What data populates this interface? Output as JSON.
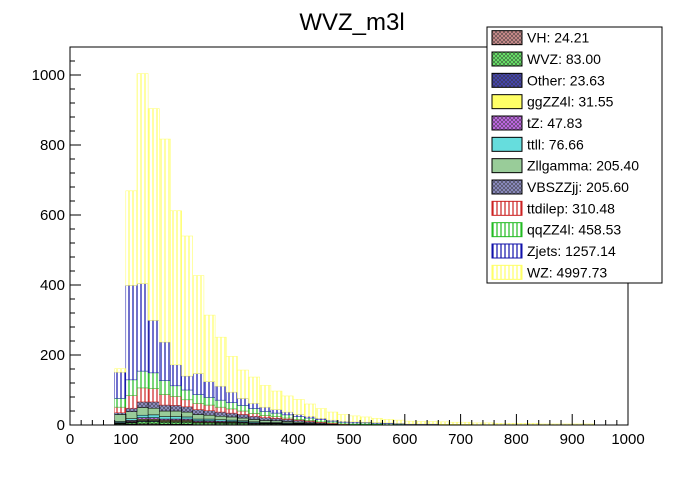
{
  "chart_data": {
    "type": "bar",
    "stacked": true,
    "title": "WVZ_m3l",
    "xlabel": "",
    "ylabel": "",
    "xlim": [
      0,
      1000
    ],
    "ylim": [
      0,
      1080
    ],
    "bin_width": 20,
    "x_ticks": [
      0,
      100,
      200,
      300,
      400,
      500,
      600,
      700,
      800,
      900,
      1000
    ],
    "y_ticks": [
      0,
      200,
      400,
      600,
      800,
      1000
    ],
    "grid": false,
    "legend_position": "top-right",
    "bins": [
      80,
      100,
      120,
      140,
      160,
      180,
      200,
      220,
      240,
      260,
      280,
      300,
      320,
      340,
      360,
      380,
      400,
      420,
      440,
      460,
      480,
      500,
      520,
      540,
      560,
      580,
      600,
      620,
      640,
      660,
      680,
      700,
      720,
      740,
      760,
      780,
      800,
      820,
      840,
      860,
      880,
      900,
      920
    ],
    "series": [
      {
        "name": "VH: 24.21",
        "color": "#c48888",
        "hatch": "cross",
        "values": [
          1,
          2,
          3,
          3,
          2,
          2,
          2,
          1,
          1,
          1,
          1,
          1,
          0,
          0,
          0,
          0,
          0,
          0,
          0,
          0,
          0,
          0,
          0,
          0,
          0,
          0,
          0,
          0,
          0,
          0,
          0,
          0,
          0,
          0,
          0,
          0,
          0,
          0,
          0,
          0,
          0,
          0,
          0
        ]
      },
      {
        "name": "WVZ: 83.00",
        "color": "#66dd66",
        "hatch": "cross",
        "values": [
          2,
          4,
          7,
          7,
          6,
          6,
          6,
          5,
          5,
          4,
          4,
          4,
          3,
          3,
          3,
          2,
          2,
          2,
          2,
          1,
          1,
          1,
          1,
          1,
          1,
          1,
          0,
          0,
          0,
          0,
          0,
          0,
          0,
          0,
          0,
          0,
          0,
          0,
          0,
          0,
          0,
          0,
          0
        ]
      },
      {
        "name": "Other: 23.63",
        "color": "#4444aa",
        "hatch": "cross",
        "values": [
          1,
          2,
          3,
          3,
          2,
          2,
          2,
          1,
          1,
          1,
          1,
          1,
          0,
          0,
          0,
          0,
          0,
          0,
          0,
          0,
          0,
          0,
          0,
          0,
          0,
          0,
          0,
          0,
          0,
          0,
          0,
          0,
          0,
          0,
          0,
          0,
          0,
          0,
          0,
          0,
          0,
          0,
          0
        ]
      },
      {
        "name": "ggZZ4l: 31.55",
        "color": "#ffff66",
        "hatch": "solid",
        "values": [
          1,
          2,
          3,
          3,
          3,
          3,
          3,
          2,
          2,
          2,
          2,
          1,
          1,
          1,
          1,
          1,
          1,
          0,
          0,
          0,
          0,
          0,
          0,
          0,
          0,
          0,
          0,
          0,
          0,
          0,
          0,
          0,
          0,
          0,
          0,
          0,
          0,
          0,
          0,
          0,
          0,
          0,
          0
        ]
      },
      {
        "name": "tZ: 47.83",
        "color": "#bb66dd",
        "hatch": "cross",
        "values": [
          2,
          3,
          5,
          5,
          4,
          4,
          4,
          3,
          3,
          3,
          2,
          2,
          2,
          1,
          1,
          1,
          1,
          1,
          0,
          0,
          0,
          0,
          0,
          0,
          0,
          0,
          0,
          0,
          0,
          0,
          0,
          0,
          0,
          0,
          0,
          0,
          0,
          0,
          0,
          0,
          0,
          0,
          0
        ]
      },
      {
        "name": "ttll: 76.66",
        "color": "#66dddd",
        "hatch": "solid",
        "values": [
          3,
          5,
          7,
          8,
          7,
          7,
          6,
          5,
          5,
          4,
          4,
          3,
          3,
          2,
          2,
          2,
          1,
          1,
          1,
          1,
          0,
          0,
          0,
          0,
          0,
          0,
          0,
          0,
          0,
          0,
          0,
          0,
          0,
          0,
          0,
          0,
          0,
          0,
          0,
          0,
          0,
          0,
          0
        ]
      },
      {
        "name": "Zllgamma: 205.40",
        "color": "#99cc99",
        "hatch": "solid",
        "values": [
          20,
          20,
          22,
          19,
          16,
          16,
          14,
          13,
          11,
          10,
          9,
          8,
          7,
          6,
          5,
          4,
          3,
          2,
          1,
          0,
          0,
          0,
          0,
          0,
          0,
          0,
          0,
          0,
          0,
          0,
          0,
          0,
          0,
          0,
          0,
          0,
          0,
          0,
          0,
          0,
          0,
          0,
          0
        ]
      },
      {
        "name": "VBSZZjj: 205.60",
        "color": "#8888bb",
        "hatch": "cross",
        "values": [
          5,
          10,
          16,
          18,
          17,
          16,
          15,
          14,
          13,
          12,
          11,
          10,
          9,
          8,
          7,
          6,
          5,
          4,
          3,
          2,
          1,
          1,
          1,
          1,
          0,
          0,
          0,
          0,
          0,
          0,
          0,
          0,
          0,
          0,
          0,
          0,
          0,
          0,
          0,
          0,
          0,
          0,
          0
        ]
      },
      {
        "name": "ttdilep: 310.48",
        "color": "#cc2222",
        "hatch": "vert",
        "values": [
          16,
          36,
          40,
          38,
          30,
          26,
          20,
          18,
          16,
          14,
          12,
          10,
          8,
          6,
          5,
          4,
          3,
          3,
          2,
          2,
          1,
          0,
          0,
          0,
          0,
          0,
          0,
          0,
          0,
          0,
          0,
          0,
          0,
          0,
          0,
          0,
          0,
          0,
          0,
          0,
          0,
          0,
          0
        ]
      },
      {
        "name": "qqZZ4l: 458.53",
        "color": "#22bb22",
        "hatch": "vert",
        "values": [
          25,
          45,
          48,
          45,
          40,
          30,
          28,
          25,
          22,
          20,
          18,
          16,
          14,
          12,
          10,
          9,
          8,
          7,
          6,
          5,
          5,
          4,
          4,
          3,
          3,
          2,
          2,
          2,
          2,
          1,
          1,
          1,
          1,
          1,
          1,
          1,
          1,
          1,
          0,
          0,
          0,
          0,
          0
        ]
      },
      {
        "name": "Zjets: 1257.14",
        "color": "#1111aa",
        "hatch": "vert",
        "values": [
          75,
          270,
          250,
          150,
          110,
          60,
          40,
          60,
          45,
          40,
          30,
          20,
          15,
          12,
          10,
          8,
          6,
          5,
          4,
          3,
          3,
          3,
          2,
          2,
          2,
          2,
          1,
          1,
          1,
          1,
          1,
          1,
          0,
          0,
          0,
          0,
          0,
          0,
          0,
          0,
          0,
          0,
          0
        ]
      },
      {
        "name": "WZ: 4997.73",
        "color": "#ffff66",
        "hatch": "vert",
        "values": [
          10,
          270,
          600,
          605,
          580,
          440,
          400,
          280,
          190,
          140,
          102,
          81,
          75,
          62,
          53,
          46,
          43,
          35,
          28,
          23,
          19,
          17,
          15,
          12,
          10,
          9,
          8,
          7,
          7,
          7,
          6,
          6,
          5,
          5,
          4,
          4,
          4,
          4,
          3,
          3,
          3,
          3,
          3
        ]
      }
    ]
  }
}
